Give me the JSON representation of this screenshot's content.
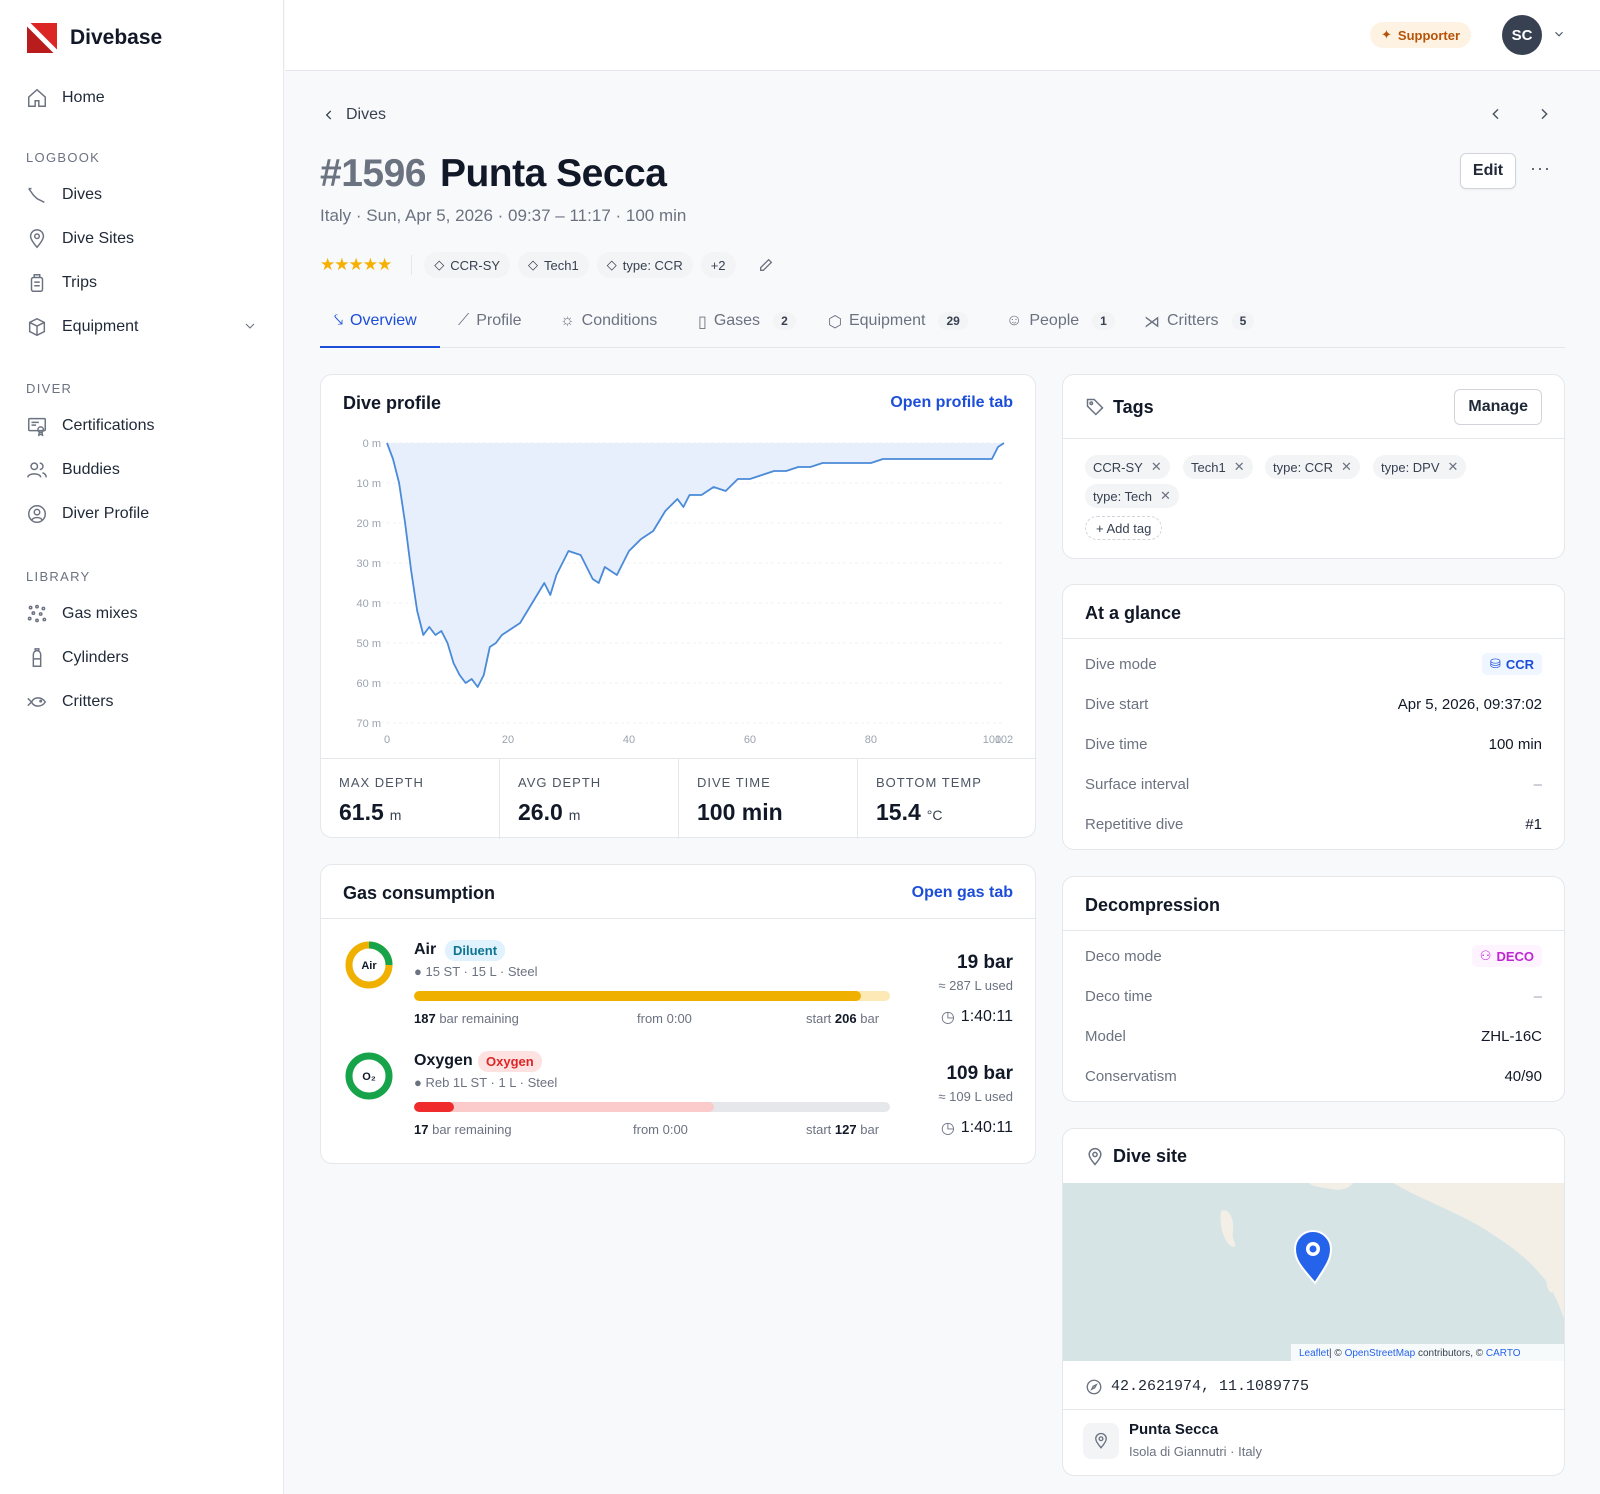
{
  "app": {
    "name": "Divebase"
  },
  "sidebar": {
    "home": "Home",
    "sections": [
      {
        "title": "LOGBOOK",
        "items": [
          "Dives",
          "Dive Sites",
          "Trips",
          "Equipment"
        ]
      },
      {
        "title": "DIVER",
        "items": [
          "Certifications",
          "Buddies",
          "Diver Profile"
        ]
      },
      {
        "title": "LIBRARY",
        "items": [
          "Gas mixes",
          "Cylinders",
          "Critters"
        ]
      }
    ]
  },
  "topbar": {
    "supporter": "Supporter",
    "avatar": "SC"
  },
  "dive": {
    "breadcrumb": "Dives",
    "number": "#1596",
    "name": "Punta Secca",
    "subtitle": "Italy · Sun, Apr 5, 2026 · 09:37 – 11:17 · 100 min",
    "rating_stars": "★★★★★",
    "rating": 5,
    "edit_label": "Edit",
    "more_label": "···",
    "tags_preview": [
      "CCR-SY",
      "Tech1",
      "type: CCR"
    ],
    "tags_more": "+2"
  },
  "tabs": [
    {
      "label": "Overview",
      "count": ""
    },
    {
      "label": "Profile",
      "count": ""
    },
    {
      "label": "Conditions",
      "count": ""
    },
    {
      "label": "Gases",
      "count": "2"
    },
    {
      "label": "Equipment",
      "count": "29"
    },
    {
      "label": "People",
      "count": "1"
    },
    {
      "label": "Critters",
      "count": "5"
    }
  ],
  "profile_card": {
    "title": "Dive profile",
    "link": "Open profile tab",
    "chart_data": {
      "type": "area",
      "y_ticks": [
        "0 m",
        "10 m",
        "20 m",
        "30 m",
        "40 m",
        "50 m",
        "60 m",
        "70 m"
      ],
      "x_ticks": [
        "0",
        "20",
        "40",
        "60",
        "80",
        "100",
        "102"
      ],
      "x_unit": "min",
      "ylim": [
        0,
        70
      ],
      "xlim": [
        0,
        102
      ],
      "grid": true,
      "x": [
        0,
        1,
        2,
        3,
        4,
        5,
        6,
        7,
        8,
        9,
        10,
        11,
        12,
        13,
        14,
        15,
        16,
        17,
        18,
        19,
        20,
        22,
        24,
        26,
        27,
        28,
        30,
        32,
        34,
        35,
        36,
        38,
        40,
        42,
        44,
        46,
        48,
        49,
        50,
        52,
        54,
        56,
        58,
        60,
        62,
        64,
        66,
        68,
        70,
        72,
        74,
        76,
        78,
        80,
        82,
        84,
        86,
        88,
        90,
        92,
        94,
        96,
        98,
        100,
        101,
        102
      ],
      "y": [
        0,
        4,
        10,
        20,
        32,
        42,
        48,
        46,
        48,
        47,
        50,
        55,
        58,
        60,
        59,
        61,
        58,
        51,
        50,
        48,
        47,
        45,
        40,
        35,
        38,
        33,
        27,
        28,
        34,
        35,
        31,
        33,
        27,
        24,
        22,
        17,
        14,
        16,
        13,
        13,
        11,
        12,
        9,
        9,
        8,
        7,
        7,
        6,
        6,
        5,
        5,
        5,
        5,
        5,
        4,
        4,
        4,
        4,
        4,
        4,
        4,
        4,
        4,
        4,
        1,
        0
      ]
    },
    "stats": [
      {
        "label": "MAX DEPTH",
        "value": "61.5",
        "unit": "m"
      },
      {
        "label": "AVG DEPTH",
        "value": "26.0",
        "unit": "m"
      },
      {
        "label": "DIVE TIME",
        "value": "100 min",
        "unit": ""
      },
      {
        "label": "BOTTOM TEMP",
        "value": "15.4",
        "unit": "°C"
      }
    ]
  },
  "gas_card": {
    "title": "Gas consumption",
    "link": "Open gas tab",
    "gases": [
      {
        "ring_label": "Air",
        "name": "Air",
        "role": "Diluent",
        "spec": "15 ST · 15 L · Steel",
        "remaining": "187",
        "remaining_suffix": "bar remaining",
        "from": "from 0:00",
        "start_prefix": "start",
        "start": "206",
        "start_suffix": "bar",
        "pressure_drop": "19 bar",
        "used": "≈ 287 L used",
        "time": "1:40:11",
        "fill_fraction": 0.94,
        "color": "#f0b000",
        "track": "#fde9b6",
        "role_bg": "#e0f2fe",
        "role_color": "#0e7490"
      },
      {
        "ring_label": "O₂",
        "name": "Oxygen",
        "role": "Oxygen",
        "spec": "Reb 1L ST · 1 L · Steel",
        "remaining": "17",
        "remaining_suffix": "bar remaining",
        "from": "from 0:00",
        "start_prefix": "start",
        "start": "127",
        "start_suffix": "bar",
        "pressure_drop": "109 bar",
        "used": "≈ 109 L used",
        "time": "1:40:11",
        "fill_fraction": 0.63,
        "color": "#16a34a",
        "track": "#fbcaca",
        "role_bg": "#fee2e2",
        "role_color": "#dc2626"
      }
    ]
  },
  "tags_card": {
    "title": "Tags",
    "manage": "Manage",
    "tags": [
      "CCR-SY",
      "Tech1",
      "type: CCR",
      "type: DPV",
      "type: Tech"
    ],
    "add": "+ Add tag"
  },
  "glance": {
    "title": "At a glance",
    "rows": [
      {
        "label": "Dive mode",
        "value": "CCR"
      },
      {
        "label": "Dive start",
        "value": "Apr 5, 2026, 09:37:02"
      },
      {
        "label": "Dive time",
        "value": "100 min"
      },
      {
        "label": "Surface interval",
        "value": "–"
      },
      {
        "label": "Repetitive dive",
        "value": "#1"
      }
    ]
  },
  "deco": {
    "title": "Decompression",
    "rows": [
      {
        "label": "Deco mode",
        "value": "DECO"
      },
      {
        "label": "Deco time",
        "value": "–"
      },
      {
        "label": "Model",
        "value": "ZHL-16C"
      },
      {
        "label": "Conservatism",
        "value": "40/90"
      }
    ]
  },
  "site": {
    "title": "Dive site",
    "attribution_leaflet": "Leaflet",
    "attribution_mid": "| © ",
    "attribution_osm": "OpenStreetMap",
    "attribution_tail": " contributors, © ",
    "attribution_carto": "CARTO",
    "coords": "42.2621974, 11.1089775",
    "name": "Punta Secca",
    "location": "Isola di Giannutri · Italy"
  },
  "colors": {
    "accent": "#1d4ed8",
    "profile_line": "#4a8ad8",
    "profile_fill": "#e6effb",
    "star": "#f5b000"
  }
}
